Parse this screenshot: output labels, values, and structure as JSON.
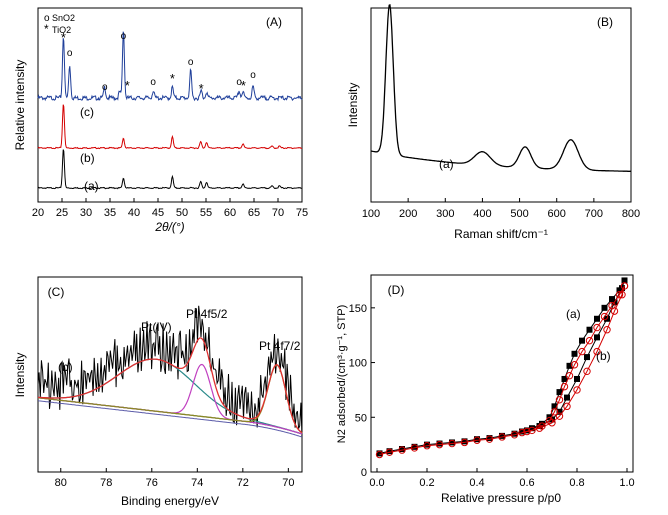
{
  "chart_data": [
    {
      "panel": "(A)",
      "type": "line",
      "xlabel": "2θ/(°)",
      "ylabel": "Relative intensity",
      "xlim": [
        20,
        75
      ],
      "xticks": [
        20,
        25,
        30,
        35,
        40,
        45,
        50,
        55,
        60,
        65,
        70,
        75
      ],
      "legend": {
        "placement": "top-left",
        "items": [
          {
            "marker": "o",
            "label": "SnO2"
          },
          {
            "marker": "*",
            "label": "TiO2"
          }
        ]
      },
      "series": [
        {
          "name": "(a)",
          "color": "#000000",
          "offset": 0,
          "peaks": [
            [
              25.3,
              1.0
            ],
            [
              37.8,
              0.25
            ],
            [
              48.0,
              0.28
            ],
            [
              53.9,
              0.16
            ],
            [
              55.1,
              0.15
            ],
            [
              62.7,
              0.1
            ],
            [
              68.8,
              0.05
            ],
            [
              70.3,
              0.05
            ]
          ]
        },
        {
          "name": "(b)",
          "color": "#d40000",
          "offset": 1,
          "peaks": [
            [
              25.3,
              1.0
            ],
            [
              37.8,
              0.22
            ],
            [
              48.0,
              0.25
            ],
            [
              53.9,
              0.14
            ],
            [
              55.1,
              0.13
            ],
            [
              62.7,
              0.09
            ],
            [
              68.8,
              0.04
            ],
            [
              70.3,
              0.04
            ]
          ]
        },
        {
          "name": "(c)",
          "color": "#1f3f9a",
          "offset": 2,
          "peaks": [
            [
              25.3,
              1.05
            ],
            [
              26.6,
              0.55
            ],
            [
              33.9,
              0.18
            ],
            [
              37.0,
              0.1
            ],
            [
              37.8,
              1.15
            ],
            [
              44.0,
              0.12
            ],
            [
              48.0,
              0.18
            ],
            [
              51.8,
              0.45
            ],
            [
              54.0,
              0.12
            ],
            [
              55.1,
              0.1
            ],
            [
              61.9,
              0.12
            ],
            [
              62.7,
              0.1
            ],
            [
              64.8,
              0.2
            ]
          ]
        }
      ],
      "series_labels": [
        "(a)",
        "(b)",
        "(c)"
      ],
      "annotations": [
        {
          "text": "*",
          "x": 25.3
        },
        {
          "text": "o",
          "x": 26.6
        },
        {
          "text": "o",
          "x": 33.9
        },
        {
          "text": "o",
          "x": 37.8
        },
        {
          "text": "*",
          "x": 38.6
        },
        {
          "text": "o",
          "x": 44.0
        },
        {
          "text": "*",
          "x": 48.0
        },
        {
          "text": "o",
          "x": 51.8
        },
        {
          "text": "*",
          "x": 54.0
        },
        {
          "text": "o",
          "x": 61.9
        },
        {
          "text": "*",
          "x": 62.8
        },
        {
          "text": "o",
          "x": 64.8
        }
      ]
    },
    {
      "panel": "(B)",
      "type": "line",
      "xlabel": "Raman shift/cm⁻¹",
      "ylabel": "Intensity",
      "xlim": [
        100,
        800
      ],
      "xticks": [
        100,
        200,
        300,
        400,
        500,
        600,
        700,
        800
      ],
      "series": [
        {
          "name": "(a)",
          "color": "#000000",
          "baseline": 0.15,
          "peaks": [
            [
              150,
              1.0,
              14
            ],
            [
              400,
              0.09,
              30
            ],
            [
              515,
              0.14,
              22
            ],
            [
              638,
              0.2,
              28
            ]
          ]
        }
      ],
      "series_labels": [
        "(a)"
      ]
    },
    {
      "panel": "(C)",
      "type": "line",
      "xlabel": "Binding energy/eV",
      "ylabel": "Intensity",
      "xlim": [
        81,
        69.4
      ],
      "xticks": [
        80,
        78,
        76,
        74,
        72,
        70
      ],
      "series_labels": [
        "(b)"
      ],
      "peak_labels": [
        "Pt(IV)",
        "Pt 4f5/2",
        "Pt 4f7/2"
      ],
      "components": [
        {
          "name": "envelope",
          "color": "#e03030"
        },
        {
          "name": "Pt(IV)",
          "color": "#2a8a8a"
        },
        {
          "name": "Pt 4f5/2",
          "color": "#c040c0"
        },
        {
          "name": "Pt 4f7/2",
          "color": "#8a8a20"
        },
        {
          "name": "background",
          "color": "#606060"
        }
      ]
    },
    {
      "panel": "(D)",
      "type": "scatter",
      "xlabel": "Relative pressure p/p0",
      "ylabel": "N2 adsorbed/(cm³·g⁻¹, STP)",
      "xlim": [
        0.0,
        1.0
      ],
      "ylim": [
        0,
        180
      ],
      "xticks": [
        0.0,
        0.2,
        0.4,
        0.6,
        0.8,
        1.0
      ],
      "yticks": [
        0,
        50,
        100,
        150
      ],
      "series": [
        {
          "name": "(a)",
          "color": "#000000",
          "marker": "square",
          "adsorption": [
            [
              0.01,
              17
            ],
            [
              0.05,
              19
            ],
            [
              0.1,
              21
            ],
            [
              0.15,
              23
            ],
            [
              0.2,
              25
            ],
            [
              0.25,
              26
            ],
            [
              0.3,
              27
            ],
            [
              0.35,
              28
            ],
            [
              0.4,
              30
            ],
            [
              0.45,
              31
            ],
            [
              0.5,
              33
            ],
            [
              0.55,
              35
            ],
            [
              0.6,
              38
            ],
            [
              0.65,
              42
            ],
            [
              0.7,
              48
            ],
            [
              0.73,
              55
            ],
            [
              0.76,
              68
            ],
            [
              0.8,
              85
            ],
            [
              0.84,
              105
            ],
            [
              0.88,
              123
            ],
            [
              0.92,
              140
            ],
            [
              0.95,
              155
            ],
            [
              0.98,
              168
            ],
            [
              0.99,
              175
            ]
          ],
          "desorption": [
            [
              0.99,
              175
            ],
            [
              0.97,
              166
            ],
            [
              0.94,
              158
            ],
            [
              0.91,
              150
            ],
            [
              0.88,
              140
            ],
            [
              0.85,
              130
            ],
            [
              0.82,
              120
            ],
            [
              0.79,
              108
            ],
            [
              0.77,
              97
            ],
            [
              0.75,
              85
            ],
            [
              0.73,
              73
            ],
            [
              0.71,
              60
            ],
            [
              0.69,
              50
            ],
            [
              0.66,
              44
            ],
            [
              0.62,
              40
            ],
            [
              0.58,
              37
            ]
          ]
        },
        {
          "name": "(b)",
          "color": "#d40000",
          "marker": "circle",
          "adsorption": [
            [
              0.01,
              16
            ],
            [
              0.05,
              18
            ],
            [
              0.1,
              20
            ],
            [
              0.15,
              22
            ],
            [
              0.2,
              24
            ],
            [
              0.25,
              25
            ],
            [
              0.3,
              26
            ],
            [
              0.35,
              27
            ],
            [
              0.4,
              29
            ],
            [
              0.45,
              30
            ],
            [
              0.5,
              32
            ],
            [
              0.55,
              34
            ],
            [
              0.6,
              37
            ],
            [
              0.65,
              40
            ],
            [
              0.7,
              45
            ],
            [
              0.73,
              51
            ],
            [
              0.76,
              60
            ],
            [
              0.8,
              75
            ],
            [
              0.84,
              92
            ],
            [
              0.88,
              110
            ],
            [
              0.92,
              130
            ],
            [
              0.95,
              147
            ],
            [
              0.98,
              162
            ],
            [
              0.99,
              170
            ]
          ],
          "desorption": [
            [
              0.99,
              170
            ],
            [
              0.97,
              162
            ],
            [
              0.94,
              152
            ],
            [
              0.91,
              142
            ],
            [
              0.88,
              132
            ],
            [
              0.85,
              120
            ],
            [
              0.82,
              110
            ],
            [
              0.79,
              98
            ],
            [
              0.77,
              88
            ],
            [
              0.75,
              78
            ],
            [
              0.73,
              66
            ],
            [
              0.71,
              55
            ],
            [
              0.69,
              47
            ],
            [
              0.66,
              42
            ],
            [
              0.62,
              38
            ],
            [
              0.58,
              36
            ]
          ]
        }
      ],
      "series_labels": [
        "(a)",
        "(b)"
      ]
    }
  ]
}
